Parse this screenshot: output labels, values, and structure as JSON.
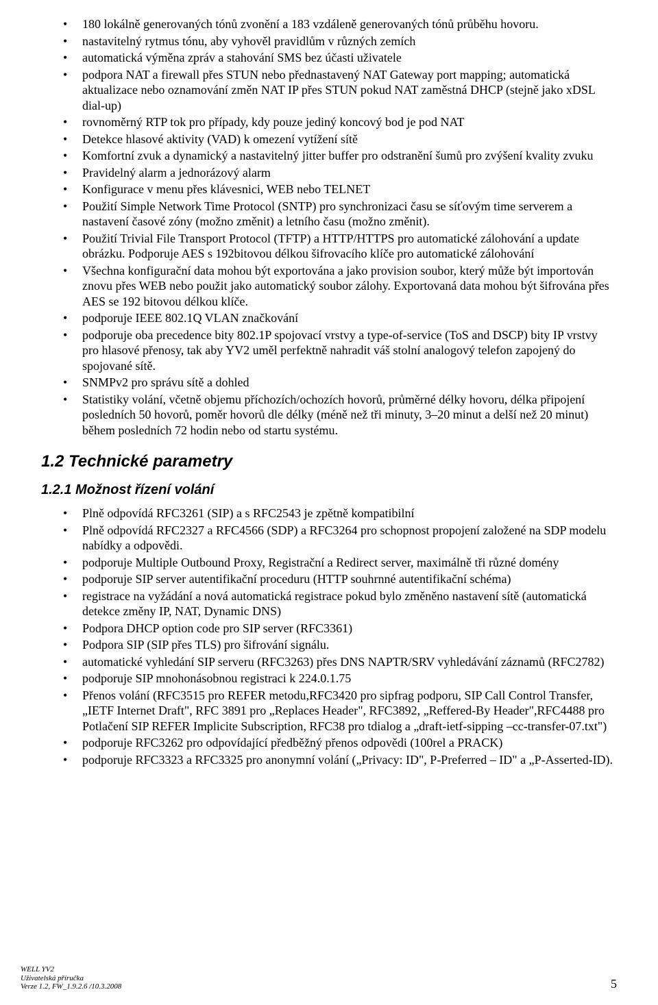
{
  "list1": [
    "180 lokálně generovaných tónů zvonění a 183 vzdáleně generovaných tónů průběhu hovoru.",
    "nastavitelný rytmus tónu, aby vyhověl pravidlům v různých zemích",
    "automatická výměna zpráv a stahování SMS bez účasti uživatele",
    "podpora NAT a firewall přes STUN nebo přednastavený NAT Gateway port mapping; automatická aktualizace nebo oznamování změn NAT IP přes STUN pokud NAT zaměstná DHCP (stejně jako xDSL dial-up)",
    "rovnoměrný RTP tok pro případy, kdy pouze jediný koncový bod je pod NAT",
    "Detekce hlasové aktivity (VAD) k omezení vytížení sítě",
    "Komfortní zvuk a dynamický a nastavitelný jitter buffer pro odstranění šumů pro zvýšení kvality zvuku",
    "Pravidelný alarm a jednorázový alarm",
    "Konfigurace v menu přes klávesnici, WEB nebo TELNET",
    "Použití Simple Network Time Protocol (SNTP) pro synchronizaci času se síťovým time serverem a nastavení časové zóny (možno změnit) a letního času (možno změnit).",
    "Použití Trivial File Transport Protocol (TFTP) a HTTP/HTTPS pro automatické zálohování a update obrázku. Podporuje AES s 192bitovou délkou šifrovacího klíče pro automatické zálohování",
    "Všechna konfigurační data mohou být exportována a jako provision soubor, který může být importován znovu přes WEB nebo použit jako automatický soubor zálohy. Exportovaná data mohou být šifrována přes AES se 192 bitovou délkou klíče.",
    "podporuje IEEE 802.1Q VLAN značkování",
    "podporuje oba precedence bity 802.1P spojovací vrstvy a type-of-service (ToS and DSCP) bity IP vrstvy pro hlasové přenosy, tak aby YV2 uměl perfektně nahradit váš stolní analogový telefon zapojený do spojované sítě.",
    "SNMPv2 pro správu sítě a dohled",
    "Statistiky volání, včetně objemu příchozích/ochozích hovorů, průměrné délky hovoru, délka připojení posledních 50 hovorů, poměr hovorů dle délky (méně než tři minuty, 3–20 minut a delší než 20 minut) během posledních 72 hodin nebo od startu systému."
  ],
  "sectionHeading": "1.2  Technické parametry",
  "subsectionHeading": "1.2.1  Možnost řízení volání",
  "list2": [
    "Plně odpovídá RFC3261 (SIP) a s RFC2543  je zpětně kompatibilní",
    "Plně odpovídá RFC2327 a RFC4566 (SDP) a RFC3264 pro schopnost propojení založené na SDP modelu nabídky a odpovědi.",
    "podporuje Multiple Outbound Proxy, Registrační a Redirect server, maximálně tři různé domény",
    "podporuje SIP server autentifikační proceduru (HTTP souhrnné autentifikační schéma)",
    "registrace na vyžádání a nová automatická registrace pokud bylo změněno nastavení sítě (automatická detekce změny IP, NAT, Dynamic DNS)",
    "Podpora DHCP option code pro SIP server (RFC3361)",
    "Podpora SIP (SIP přes TLS) pro šifrování signálu.",
    "automatické vyhledání SIP serveru (RFC3263) přes DNS NAPTR/SRV vyhledávání záznamů (RFC2782)",
    "podporuje SIP mnohonásobnou registraci k 224.0.1.75",
    "Přenos volání (RFC3515 pro REFER metodu,RFC3420 pro sipfrag podporu, SIP Call Control Transfer, „IETF Internet Draft\", RFC 3891 pro  „Replaces Header\", RFC3892, „Reffered-By Header\",RFC4488 pro Potlačení SIP REFER Implicite Subscription, RFC38 pro tdialog a „draft-ietf-sipping –cc-transfer-07.txt\")",
    "podporuje RFC3262 pro odpovídající předběžný přenos odpovědi (100rel a PRACK)",
    "podporuje RFC3323 a RFC3325 pro anonymní volání („Privacy: ID\", P-Preferred – ID\" a „P-Asserted-ID)."
  ],
  "footer": {
    "line1": "WELL YV2",
    "line2": "Uživatelská příručka",
    "line3": "Verze 1.2, FW_1.9.2.6 /10.3.2008",
    "pageNumber": "5"
  }
}
